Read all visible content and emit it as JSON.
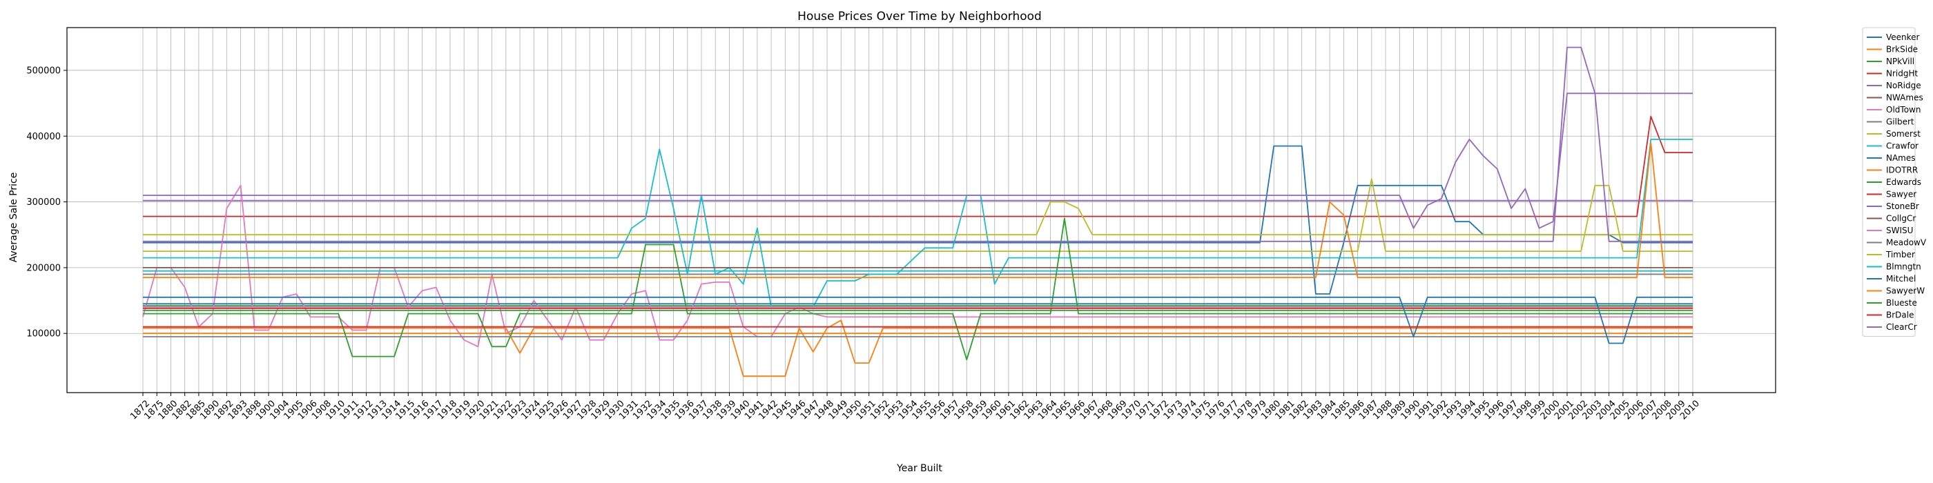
{
  "chart_data": {
    "type": "line",
    "title": "House Prices Over Time by Neighborhood",
    "xlabel": "Year Built",
    "ylabel": "Average Sale Price",
    "x": [
      "1872",
      "1875",
      "1880",
      "1882",
      "1885",
      "1890",
      "1892",
      "1893",
      "1898",
      "1900",
      "1904",
      "1905",
      "1906",
      "1908",
      "1910",
      "1911",
      "1912",
      "1913",
      "1914",
      "1915",
      "1916",
      "1917",
      "1918",
      "1919",
      "1920",
      "1921",
      "1922",
      "1923",
      "1924",
      "1925",
      "1926",
      "1927",
      "1928",
      "1929",
      "1930",
      "1931",
      "1932",
      "1934",
      "1935",
      "1936",
      "1937",
      "1938",
      "1939",
      "1940",
      "1941",
      "1942",
      "1945",
      "1946",
      "1947",
      "1948",
      "1949",
      "1950",
      "1951",
      "1952",
      "1953",
      "1954",
      "1955",
      "1956",
      "1957",
      "1958",
      "1959",
      "1960",
      "1961",
      "1962",
      "1963",
      "1964",
      "1965",
      "1966",
      "1967",
      "1968",
      "1969",
      "1970",
      "1971",
      "1972",
      "1973",
      "1974",
      "1975",
      "1976",
      "1977",
      "1978",
      "1979",
      "1980",
      "1981",
      "1982",
      "1983",
      "1984",
      "1985",
      "1986",
      "1987",
      "1988",
      "1989",
      "1990",
      "1991",
      "1992",
      "1993",
      "1994",
      "1995",
      "1996",
      "1997",
      "1998",
      "1999",
      "2000",
      "2001",
      "2002",
      "2003",
      "2004",
      "2005",
      "2006",
      "2007",
      "2008",
      "2009",
      "2010"
    ],
    "ylim": [
      10000,
      565000
    ],
    "yticks": [
      100000,
      200000,
      300000,
      400000,
      500000
    ],
    "ytick_labels": [
      "100000",
      "200000",
      "300000",
      "400000",
      "500000"
    ],
    "grid": true,
    "legend_position": "outside-right",
    "series": [
      {
        "name": "Veenker",
        "color": "#1f77b4",
        "flat": 238000,
        "var": [
          [
            81,
            385000
          ],
          [
            82,
            385000
          ],
          [
            83,
            385000
          ],
          [
            84,
            160000
          ],
          [
            85,
            160000
          ],
          [
            87,
            325000
          ],
          [
            88,
            325000
          ],
          [
            89,
            325000
          ],
          [
            90,
            325000
          ],
          [
            91,
            325000
          ],
          [
            92,
            325000
          ],
          [
            93,
            325000
          ],
          [
            94,
            270000
          ],
          [
            95,
            270000
          ],
          [
            96,
            250000
          ],
          [
            97,
            250000
          ],
          [
            98,
            250000
          ],
          [
            99,
            250000
          ],
          [
            100,
            250000
          ],
          [
            101,
            250000
          ],
          [
            102,
            250000
          ],
          [
            103,
            250000
          ],
          [
            104,
            250000
          ],
          [
            105,
            250000
          ]
        ]
      },
      {
        "name": "BrkSide",
        "color": "#ff7f0e",
        "flat": 108000,
        "var": [
          [
            27,
            70000
          ],
          [
            43,
            35000
          ],
          [
            44,
            35000
          ],
          [
            45,
            35000
          ],
          [
            46,
            35000
          ],
          [
            48,
            72000
          ],
          [
            50,
            120000
          ],
          [
            51,
            55000
          ],
          [
            52,
            55000
          ]
        ]
      },
      {
        "name": "NPkVill",
        "color": "#2ca02c",
        "flat": 142000
      },
      {
        "name": "NridgHt",
        "color": "#d62728",
        "flat": 278000,
        "var": [
          [
            104,
            278000
          ],
          [
            105,
            278000
          ],
          [
            106,
            278000
          ],
          [
            107,
            278000
          ],
          [
            108,
            430000
          ],
          [
            109,
            375000
          ],
          [
            110,
            375000
          ],
          [
            111,
            375000
          ]
        ]
      },
      {
        "name": "NoRidge",
        "color": "#9467bd",
        "flat": 302000
      },
      {
        "name": "NWAmes",
        "color": "#8c564b",
        "flat": 190000
      },
      {
        "name": "OldTown",
        "color": "#e377c2",
        "flat": 125000,
        "var": [
          [
            1,
            200000
          ],
          [
            2,
            200000
          ],
          [
            3,
            170000
          ],
          [
            4,
            110000
          ],
          [
            5,
            130000
          ],
          [
            6,
            290000
          ],
          [
            7,
            325000
          ],
          [
            8,
            105000
          ],
          [
            9,
            105000
          ],
          [
            10,
            155000
          ],
          [
            11,
            160000
          ],
          [
            15,
            105000
          ],
          [
            16,
            105000
          ],
          [
            17,
            200000
          ],
          [
            18,
            200000
          ],
          [
            19,
            140000
          ],
          [
            20,
            165000
          ],
          [
            21,
            170000
          ],
          [
            22,
            120000
          ],
          [
            23,
            90000
          ],
          [
            24,
            80000
          ],
          [
            25,
            190000
          ],
          [
            26,
            100000
          ],
          [
            27,
            110000
          ],
          [
            28,
            150000
          ],
          [
            29,
            120000
          ],
          [
            30,
            90000
          ],
          [
            31,
            140000
          ],
          [
            32,
            90000
          ],
          [
            33,
            90000
          ],
          [
            34,
            130000
          ],
          [
            35,
            160000
          ],
          [
            36,
            165000
          ],
          [
            37,
            90000
          ],
          [
            38,
            90000
          ],
          [
            39,
            120000
          ],
          [
            40,
            175000
          ],
          [
            41,
            178000
          ],
          [
            42,
            178000
          ],
          [
            43,
            110000
          ],
          [
            44,
            95000
          ],
          [
            45,
            95000
          ],
          [
            46,
            130000
          ],
          [
            47,
            140000
          ],
          [
            48,
            130000
          ]
        ]
      },
      {
        "name": "Gilbert",
        "color": "#7f7f7f",
        "flat": 190000
      },
      {
        "name": "Somerst",
        "color": "#bcbd22",
        "flat": 225000,
        "var": [
          [
            88,
            335000
          ],
          [
            104,
            325000
          ],
          [
            105,
            325000
          ]
        ]
      },
      {
        "name": "Crawfor",
        "color": "#17becf",
        "flat": 215000,
        "var": [
          [
            21,
            215000
          ],
          [
            22,
            215000
          ],
          [
            35,
            260000
          ],
          [
            36,
            275000
          ],
          [
            37,
            380000
          ],
          [
            38,
            290000
          ],
          [
            39,
            190000
          ],
          [
            40,
            310000
          ],
          [
            41,
            190000
          ],
          [
            42,
            200000
          ],
          [
            43,
            175000
          ],
          [
            44,
            260000
          ],
          [
            45,
            140000
          ],
          [
            46,
            140000
          ],
          [
            47,
            140000
          ],
          [
            48,
            140000
          ],
          [
            49,
            180000
          ],
          [
            50,
            180000
          ],
          [
            51,
            180000
          ],
          [
            52,
            190000
          ],
          [
            53,
            190000
          ],
          [
            54,
            190000
          ],
          [
            55,
            210000
          ],
          [
            56,
            230000
          ],
          [
            57,
            230000
          ],
          [
            58,
            230000
          ],
          [
            59,
            310000
          ],
          [
            60,
            310000
          ],
          [
            61,
            175000
          ],
          [
            108,
            395000
          ],
          [
            109,
            395000
          ],
          [
            110,
            395000
          ],
          [
            111,
            395000
          ]
        ]
      },
      {
        "name": "NAmes",
        "color": "#1f77b4",
        "flat": 145000
      },
      {
        "name": "IDOTRR",
        "color": "#ff7f0e",
        "flat": 100000
      },
      {
        "name": "Edwards",
        "color": "#2ca02c",
        "flat": 130000,
        "var": [
          [
            15,
            65000
          ],
          [
            16,
            65000
          ],
          [
            17,
            65000
          ],
          [
            18,
            65000
          ],
          [
            25,
            80000
          ],
          [
            26,
            80000
          ],
          [
            36,
            235000
          ],
          [
            37,
            235000
          ],
          [
            38,
            235000
          ],
          [
            59,
            60000
          ],
          [
            66,
            275000
          ]
        ]
      },
      {
        "name": "Sawyer",
        "color": "#d62728",
        "flat": 138000
      },
      {
        "name": "StoneBr",
        "color": "#9467bd",
        "flat": 310000,
        "var": [
          [
            90,
            310000
          ],
          [
            91,
            260000
          ],
          [
            92,
            295000
          ],
          [
            93,
            305000
          ],
          [
            94,
            360000
          ],
          [
            95,
            395000
          ],
          [
            96,
            370000
          ],
          [
            97,
            350000
          ],
          [
            98,
            290000
          ],
          [
            99,
            320000
          ],
          [
            100,
            260000
          ],
          [
            101,
            270000
          ],
          [
            102,
            465000
          ],
          [
            103,
            465000
          ],
          [
            104,
            465000
          ],
          [
            105,
            465000
          ],
          [
            106,
            465000
          ],
          [
            107,
            465000
          ],
          [
            108,
            465000
          ],
          [
            109,
            465000
          ],
          [
            110,
            465000
          ],
          [
            111,
            465000
          ]
        ]
      },
      {
        "name": "CollgCr",
        "color": "#8c564b",
        "flat": 200000
      },
      {
        "name": "SWISU",
        "color": "#e377c2",
        "flat": 140000
      },
      {
        "name": "MeadowV",
        "color": "#7f7f7f",
        "flat": 95000
      },
      {
        "name": "Timber",
        "color": "#bcbd22",
        "flat": 250000,
        "var": [
          [
            65,
            300000
          ],
          [
            66,
            300000
          ],
          [
            67,
            290000
          ]
        ]
      },
      {
        "name": "Blmngtn",
        "color": "#17becf",
        "flat": 195000
      },
      {
        "name": "Mitchel",
        "color": "#1f77b4",
        "flat": 155000,
        "var": [
          [
            91,
            95000
          ],
          [
            105,
            85000
          ],
          [
            106,
            85000
          ]
        ]
      },
      {
        "name": "SawyerW",
        "color": "#ff7f0e",
        "flat": 185000,
        "var": [
          [
            85,
            300000
          ],
          [
            86,
            280000
          ],
          [
            108,
            390000
          ]
        ]
      },
      {
        "name": "Blueste",
        "color": "#2ca02c",
        "flat": 135000
      },
      {
        "name": "BrDale",
        "color": "#d62728",
        "flat": 110000
      },
      {
        "name": "ClearCr",
        "color": "#9467bd",
        "flat": 240000,
        "var": [
          [
            102,
            535000
          ],
          [
            103,
            535000
          ],
          [
            104,
            465000
          ]
        ]
      }
    ]
  }
}
